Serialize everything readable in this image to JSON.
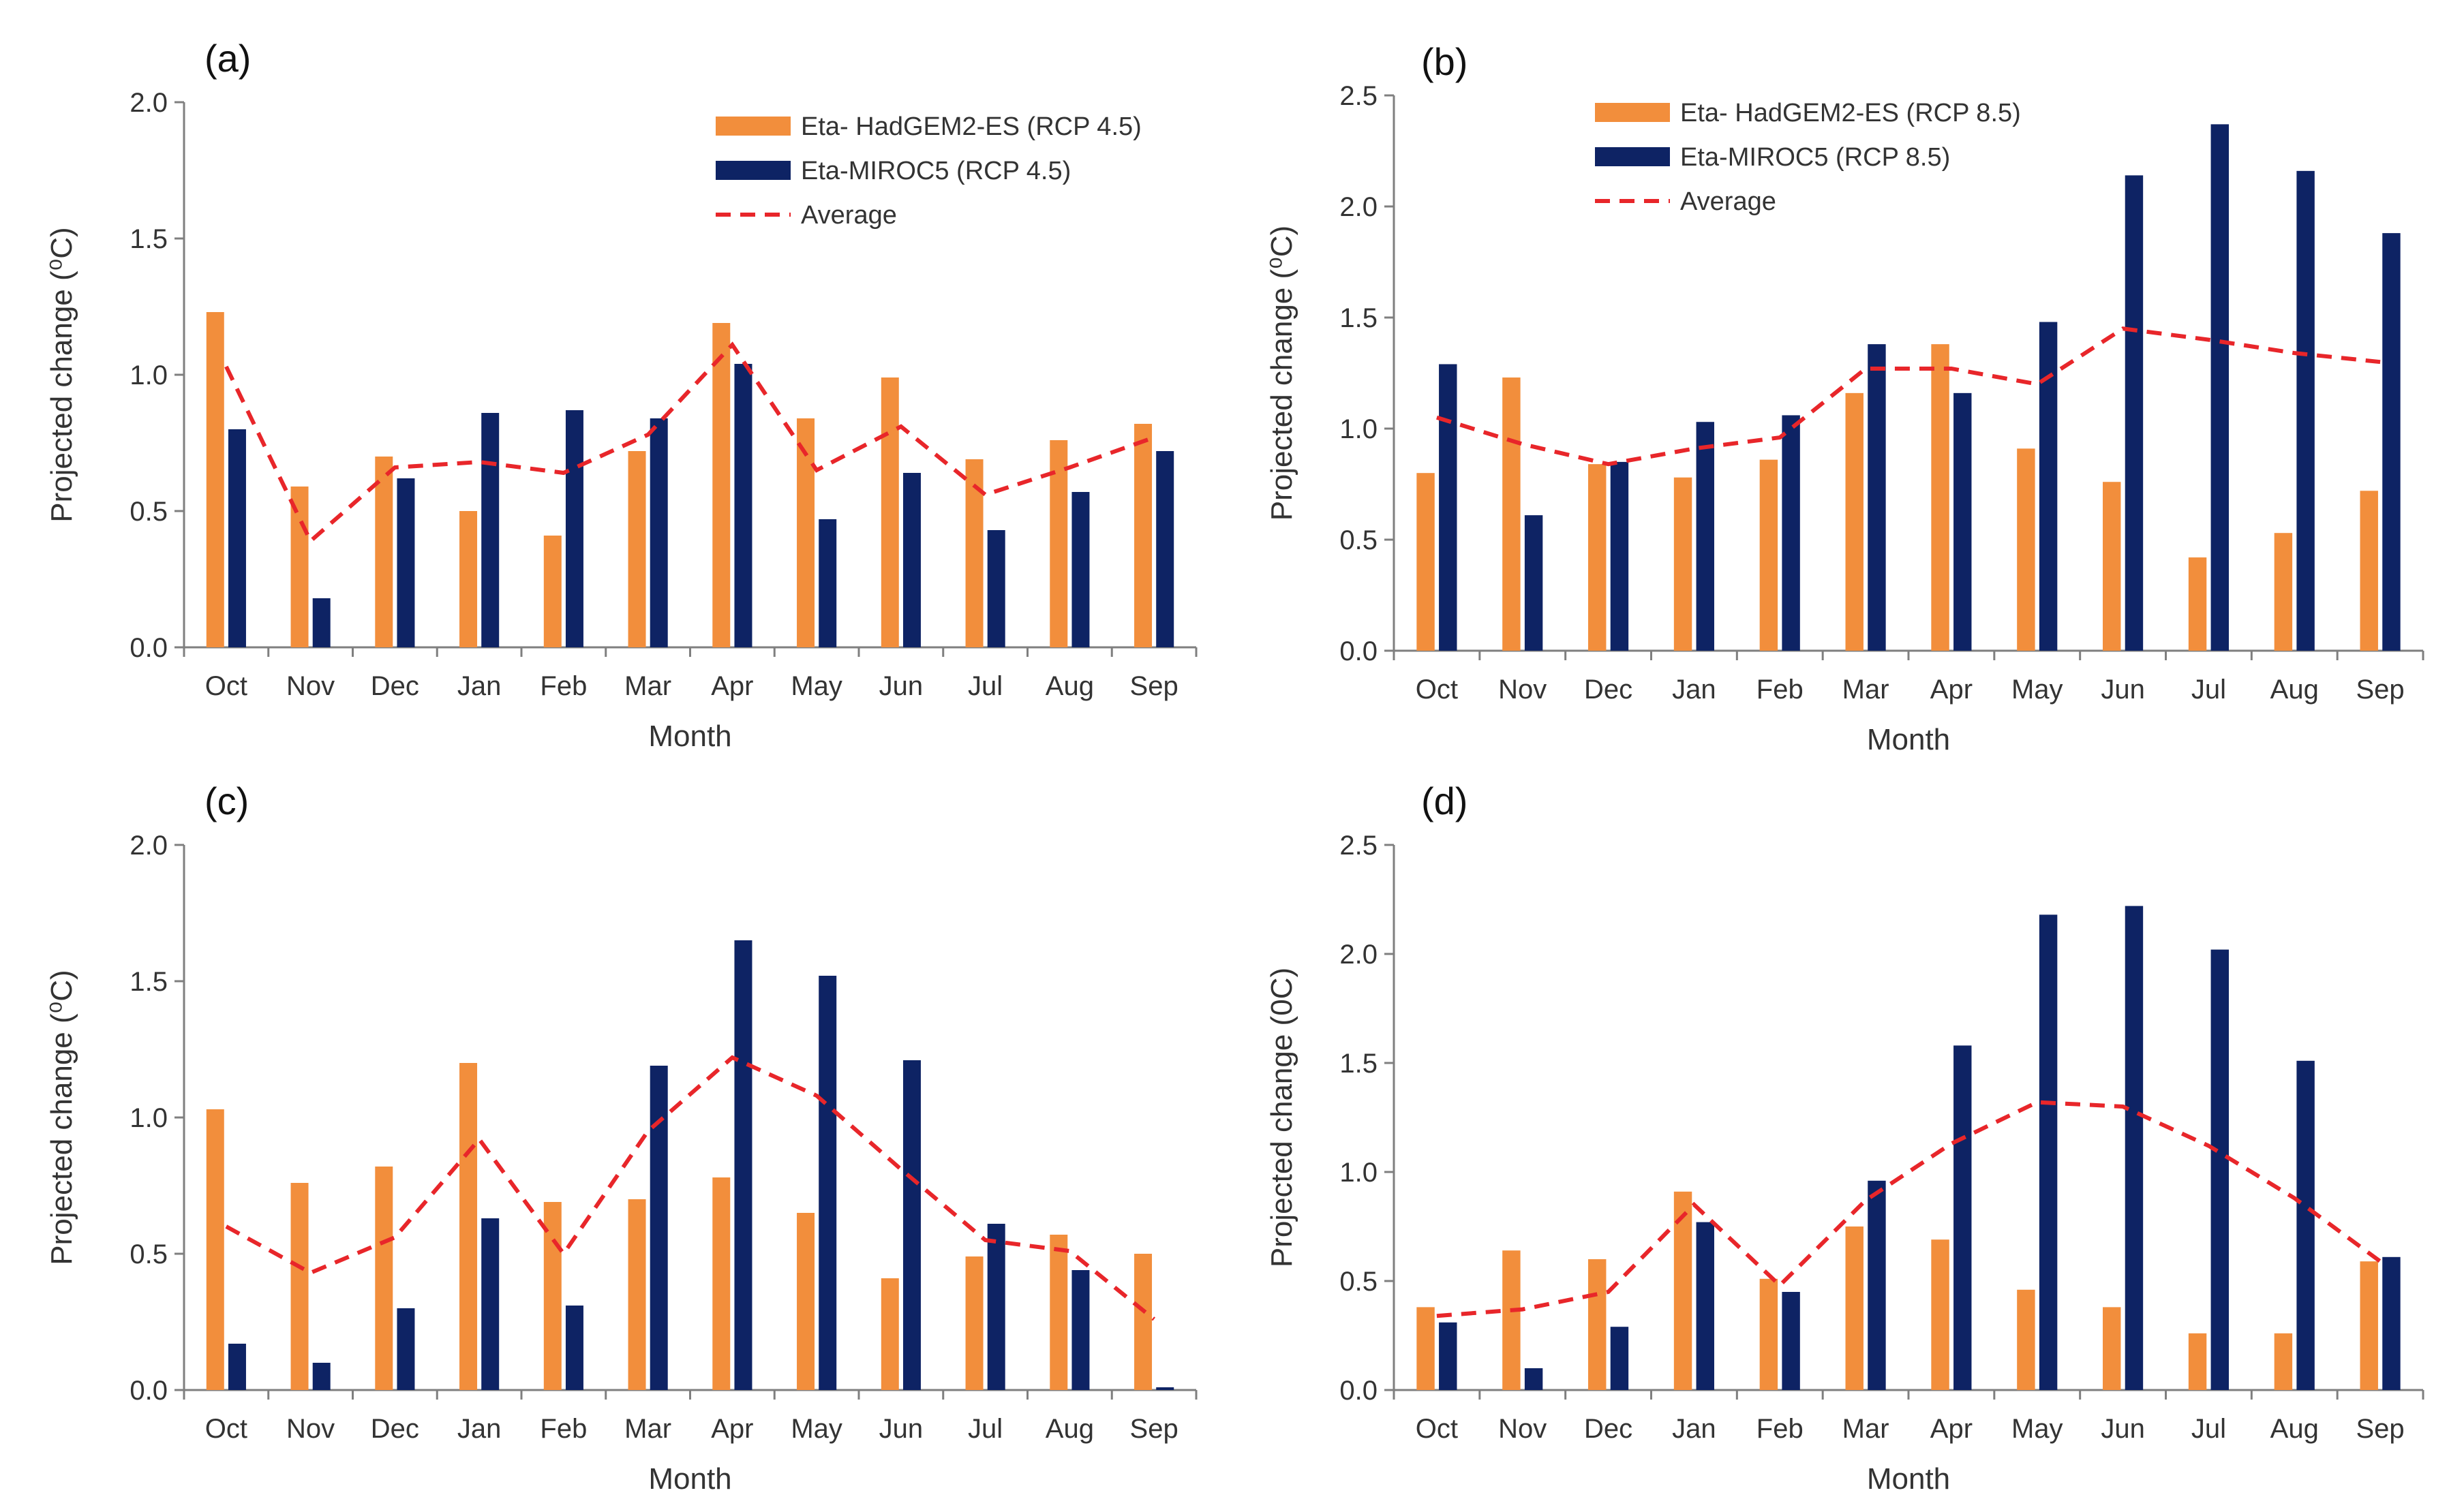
{
  "colors": {
    "hadgem": "#f28e3c",
    "miroc": "#0e2364",
    "average": "#e8262a",
    "axis": "#7f7f7f"
  },
  "chart_data": [
    {
      "id": "a",
      "type": "bar",
      "panel_label": "(a)",
      "xlabel": "Month",
      "ylabel": "Projected change (⁰C)",
      "ylim": [
        0,
        2
      ],
      "yticks": [
        "0.0",
        "0.5",
        "1.0",
        "1.5",
        "2.0"
      ],
      "categories": [
        "Oct",
        "Nov",
        "Dec",
        "Jan",
        "Feb",
        "Mar",
        "Apr",
        "May",
        "Jun",
        "Jul",
        "Aug",
        "Sep"
      ],
      "series": [
        {
          "name": "Eta- HadGEM2-ES (RCP 4.5)",
          "values": [
            1.23,
            0.59,
            0.7,
            0.5,
            0.41,
            0.72,
            1.19,
            0.84,
            0.99,
            0.69,
            0.76,
            0.82
          ]
        },
        {
          "name": "Eta-MIROC5 (RCP 4.5)",
          "values": [
            0.8,
            0.18,
            0.62,
            0.86,
            0.87,
            0.84,
            1.04,
            0.47,
            0.64,
            0.43,
            0.57,
            0.72
          ]
        }
      ],
      "line": {
        "name": "Average",
        "values": [
          1.03,
          0.39,
          0.66,
          0.68,
          0.64,
          0.78,
          1.11,
          0.65,
          0.81,
          0.56,
          0.66,
          0.77
        ]
      },
      "legend": "top-right"
    },
    {
      "id": "b",
      "type": "bar",
      "panel_label": "(b)",
      "xlabel": "Month",
      "ylabel": "Projected change (⁰C)",
      "ylim": [
        0,
        2.5
      ],
      "yticks": [
        "0.0",
        "0.5",
        "1.0",
        "1.5",
        "2.0",
        "2.5"
      ],
      "categories": [
        "Oct",
        "Nov",
        "Dec",
        "Jan",
        "Feb",
        "Mar",
        "Apr",
        "May",
        "Jun",
        "Jul",
        "Aug",
        "Sep"
      ],
      "series": [
        {
          "name": "Eta- HadGEM2-ES (RCP 8.5)",
          "values": [
            0.8,
            1.23,
            0.84,
            0.78,
            0.86,
            1.16,
            1.38,
            0.91,
            0.76,
            0.42,
            0.53,
            0.72
          ]
        },
        {
          "name": "Eta-MIROC5 (RCP 8.5)",
          "values": [
            1.29,
            0.61,
            0.85,
            1.03,
            1.06,
            1.38,
            1.16,
            1.48,
            2.14,
            2.37,
            2.16,
            1.88
          ]
        }
      ],
      "line": {
        "name": "Average",
        "values": [
          1.05,
          0.93,
          0.84,
          0.91,
          0.96,
          1.27,
          1.27,
          1.2,
          1.45,
          1.4,
          1.34,
          1.3
        ]
      },
      "legend": "top-left"
    },
    {
      "id": "c",
      "type": "bar",
      "panel_label": "(c)",
      "xlabel": "Month",
      "ylabel": "Projected change (⁰C)",
      "ylim": [
        0,
        2
      ],
      "yticks": [
        "0.0",
        "0.5",
        "1.0",
        "1.5",
        "2.0"
      ],
      "categories": [
        "Oct",
        "Nov",
        "Dec",
        "Jan",
        "Feb",
        "Mar",
        "Apr",
        "May",
        "Jun",
        "Jul",
        "Aug",
        "Sep"
      ],
      "series": [
        {
          "name": "Eta- HadGEM2-ES",
          "values": [
            1.03,
            0.76,
            0.82,
            1.2,
            0.69,
            0.7,
            0.78,
            0.65,
            0.41,
            0.49,
            0.57,
            0.5
          ]
        },
        {
          "name": "Eta-MIROC5",
          "values": [
            0.17,
            0.1,
            0.3,
            0.63,
            0.31,
            1.19,
            1.65,
            1.52,
            1.21,
            0.61,
            0.44,
            0.01
          ]
        }
      ],
      "line": {
        "name": "Average",
        "values": [
          0.6,
          0.43,
          0.56,
          0.92,
          0.5,
          0.95,
          1.22,
          1.08,
          0.81,
          0.55,
          0.51,
          0.26
        ]
      }
    },
    {
      "id": "d",
      "type": "bar",
      "panel_label": "(d)",
      "xlabel": "Month",
      "ylabel": "Projected change (0C)",
      "ylim": [
        0,
        2.5
      ],
      "yticks": [
        "0.0",
        "0.5",
        "1.0",
        "1.5",
        "2.0",
        "2.5"
      ],
      "categories": [
        "Oct",
        "Nov",
        "Dec",
        "Jan",
        "Feb",
        "Mar",
        "Apr",
        "May",
        "Jun",
        "Jul",
        "Aug",
        "Sep"
      ],
      "series": [
        {
          "name": "Eta- HadGEM2-ES",
          "values": [
            0.38,
            0.64,
            0.6,
            0.91,
            0.51,
            0.75,
            0.69,
            0.46,
            0.38,
            0.26,
            0.26,
            0.59
          ]
        },
        {
          "name": "Eta-MIROC5",
          "values": [
            0.31,
            0.1,
            0.29,
            0.77,
            0.45,
            0.96,
            1.58,
            2.18,
            2.22,
            2.02,
            1.51,
            0.61
          ]
        }
      ],
      "line": {
        "name": "Average",
        "values": [
          0.34,
          0.37,
          0.45,
          0.85,
          0.48,
          0.87,
          1.13,
          1.32,
          1.3,
          1.12,
          0.88,
          0.59
        ]
      }
    }
  ]
}
